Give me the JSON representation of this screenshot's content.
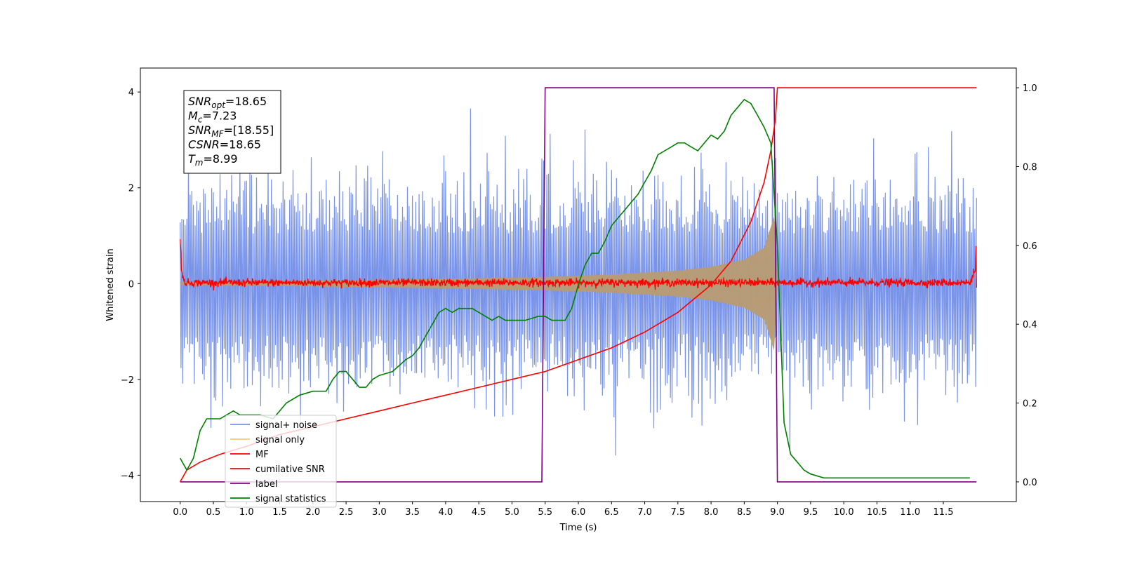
{
  "chart_data": {
    "type": "line",
    "xlabel": "Time (s)",
    "ylabel": "Whitened strain",
    "xlim": [
      -0.6,
      12.6
    ],
    "ylim": [
      -4.55,
      4.5
    ],
    "y2lim": [
      -0.05,
      1.05
    ],
    "x_ticks": [
      "0.0",
      "0.5",
      "1.0",
      "1.5",
      "2.0",
      "2.5",
      "3.0",
      "3.5",
      "4.0",
      "4.5",
      "5.0",
      "5.5",
      "6.0",
      "6.5",
      "7.0",
      "7.5",
      "8.0",
      "8.5",
      "9.0",
      "9.5",
      "10.0",
      "10.5",
      "11.0",
      "11.5"
    ],
    "y_ticks": [
      "4",
      "2",
      "0",
      "−2",
      "−4"
    ],
    "y2_ticks": [
      "1.0",
      "0.8",
      "0.6",
      "0.4",
      "0.2",
      "0.0"
    ],
    "grid": false,
    "legend_position": "lower-left",
    "annotation": {
      "lines": [
        {
          "base": "SNR",
          "sub": "opt",
          "rest": "=18.65"
        },
        {
          "base": "M",
          "sub": "c",
          "rest": "=7.23"
        },
        {
          "base": "SNR",
          "sub": "MF",
          "rest": "=[18.55]"
        },
        {
          "base": "CSNR",
          "sub": "",
          "rest": "=18.65"
        },
        {
          "base": "T",
          "sub": "m",
          "rest": "=8.99"
        }
      ]
    },
    "noise_band": {
      "x_start": 0.0,
      "x_end": 12.0,
      "typical_upper": 1.9,
      "typical_lower": -1.9,
      "peak_upper": 4.05,
      "peak_lower": -3.7
    },
    "signal_envelope": {
      "x": [
        0.0,
        2.0,
        4.0,
        5.5,
        6.5,
        7.5,
        8.0,
        8.5,
        8.8,
        8.95,
        9.0
      ],
      "amplitude": [
        0.03,
        0.06,
        0.1,
        0.14,
        0.19,
        0.27,
        0.35,
        0.5,
        0.75,
        1.4,
        0.0
      ]
    },
    "series": [
      {
        "name": "signal+ noise",
        "color": "#7893e8",
        "axis": "left",
        "style": "noise"
      },
      {
        "name": "signal only",
        "color": "#f6c97a",
        "axis": "left",
        "style": "envelope"
      },
      {
        "name": "MF",
        "color": "#ff0000",
        "axis": "left",
        "style": "jitter",
        "x": [
          0.0,
          0.02,
          0.05,
          0.1,
          11.9,
          11.98,
          12.0
        ],
        "y": [
          1.0,
          0.3,
          0.05,
          0.02,
          0.02,
          0.3,
          0.9
        ]
      },
      {
        "name": "cumilative SNR",
        "color": "#ff0000",
        "axis": "right",
        "x": [
          0.0,
          0.1,
          0.3,
          0.6,
          1.0,
          1.5,
          2.0,
          2.5,
          3.0,
          3.5,
          4.0,
          4.5,
          5.0,
          5.5,
          6.0,
          6.5,
          7.0,
          7.5,
          8.0,
          8.3,
          8.6,
          8.8,
          8.9,
          8.97,
          9.0,
          12.0
        ],
        "y": [
          0.0,
          0.03,
          0.05,
          0.07,
          0.09,
          0.12,
          0.14,
          0.16,
          0.18,
          0.2,
          0.22,
          0.24,
          0.26,
          0.28,
          0.31,
          0.34,
          0.38,
          0.43,
          0.5,
          0.56,
          0.66,
          0.76,
          0.84,
          0.92,
          1.0,
          1.0
        ]
      },
      {
        "name": "label",
        "color": "#800080",
        "axis": "right",
        "x": [
          0.0,
          5.45,
          5.5,
          8.95,
          9.0,
          12.0
        ],
        "y": [
          0.0,
          0.0,
          1.0,
          1.0,
          0.0,
          0.0
        ]
      },
      {
        "name": "signal statistics",
        "color": "#008000",
        "axis": "right",
        "x": [
          0.0,
          0.1,
          0.2,
          0.3,
          0.4,
          0.5,
          0.6,
          0.7,
          0.8,
          0.9,
          1.0,
          1.2,
          1.4,
          1.6,
          1.8,
          2.0,
          2.2,
          2.3,
          2.4,
          2.5,
          2.6,
          2.7,
          2.8,
          2.9,
          3.0,
          3.2,
          3.4,
          3.5,
          3.6,
          3.7,
          3.8,
          3.9,
          4.0,
          4.1,
          4.2,
          4.3,
          4.4,
          4.5,
          4.6,
          4.7,
          4.8,
          4.9,
          5.0,
          5.2,
          5.4,
          5.5,
          5.6,
          5.8,
          5.9,
          6.0,
          6.1,
          6.2,
          6.3,
          6.4,
          6.5,
          6.6,
          6.7,
          6.8,
          6.9,
          7.0,
          7.1,
          7.2,
          7.3,
          7.4,
          7.5,
          7.6,
          7.7,
          7.8,
          7.9,
          8.0,
          8.1,
          8.2,
          8.3,
          8.4,
          8.5,
          8.6,
          8.7,
          8.8,
          8.9,
          9.0,
          9.1,
          9.2,
          9.3,
          9.4,
          9.5,
          9.7,
          10.0,
          10.5,
          11.0,
          11.5,
          11.9
        ],
        "y": [
          0.06,
          0.03,
          0.06,
          0.13,
          0.16,
          0.16,
          0.16,
          0.17,
          0.18,
          0.17,
          0.17,
          0.17,
          0.16,
          0.2,
          0.22,
          0.23,
          0.23,
          0.26,
          0.28,
          0.28,
          0.26,
          0.24,
          0.24,
          0.26,
          0.27,
          0.28,
          0.31,
          0.32,
          0.34,
          0.37,
          0.4,
          0.43,
          0.44,
          0.43,
          0.44,
          0.44,
          0.44,
          0.43,
          0.42,
          0.41,
          0.42,
          0.41,
          0.41,
          0.41,
          0.42,
          0.42,
          0.41,
          0.41,
          0.44,
          0.5,
          0.55,
          0.58,
          0.58,
          0.61,
          0.65,
          0.67,
          0.69,
          0.71,
          0.73,
          0.76,
          0.79,
          0.83,
          0.84,
          0.85,
          0.86,
          0.86,
          0.85,
          0.84,
          0.86,
          0.88,
          0.87,
          0.89,
          0.93,
          0.95,
          0.97,
          0.96,
          0.93,
          0.9,
          0.86,
          0.6,
          0.15,
          0.07,
          0.05,
          0.03,
          0.02,
          0.01,
          0.01,
          0.01,
          0.01,
          0.01,
          0.01
        ]
      }
    ]
  }
}
